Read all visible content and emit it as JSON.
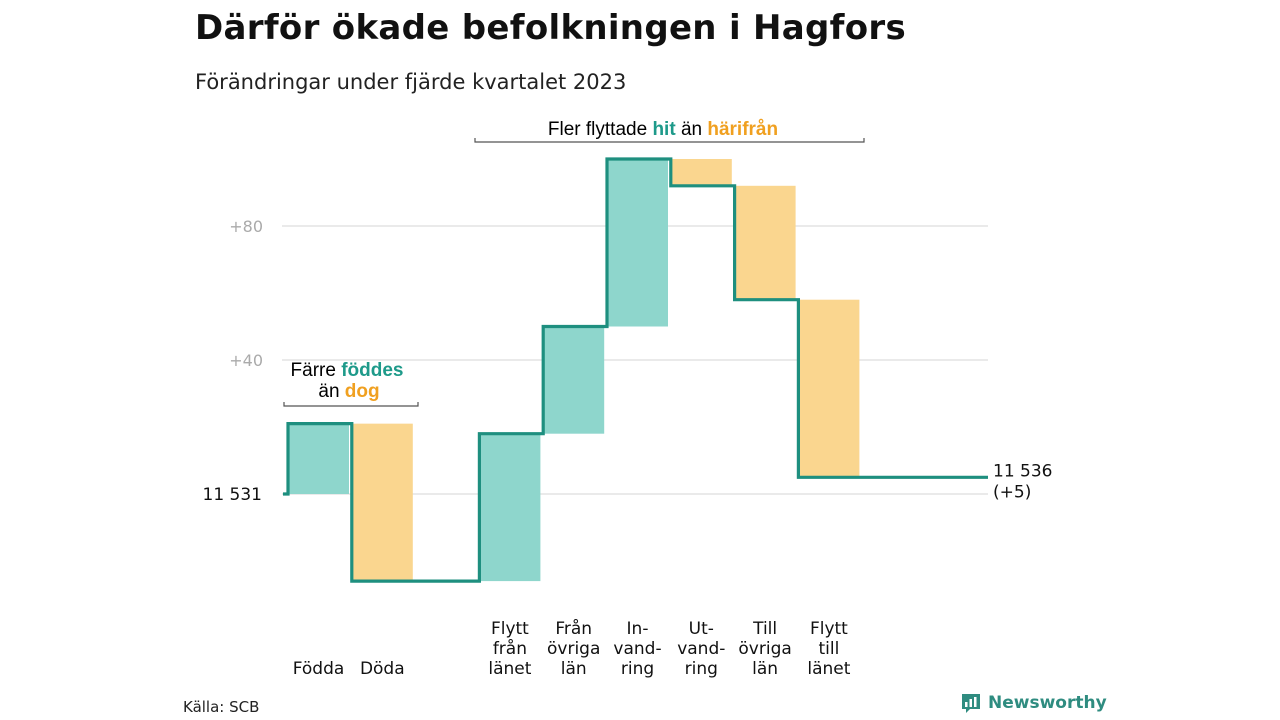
{
  "title": "Därför ökade befolkningen i Hagfors",
  "subtitle": "Förändringar under fjärde kvartalet 2023",
  "source": "Källa: SCB",
  "brand": "Newsworthy",
  "colors": {
    "increase": "#8ed6cc",
    "decrease": "#fad68f",
    "line": "#1e8f7f",
    "teal_text": "#1e9a8a",
    "orange_text": "#f0a020",
    "grid": "#dddddd",
    "tick": "#aaaaaa"
  },
  "annotations": {
    "births_deaths": {
      "line1_prefix": "Färre",
      "line1_highlight": "föddes",
      "line2_prefix": "än",
      "line2_highlight": "dog"
    },
    "migration": {
      "prefix": "Fler flyttade",
      "highlight1": "hit",
      "middle": "än",
      "highlight2": "härifrån"
    }
  },
  "chart_data": {
    "type": "waterfall",
    "title": "Därför ökade befolkningen i Hagfors",
    "subtitle": "Förändringar under fjärde kvartalet 2023",
    "start_value": 11531,
    "start_label": "11  531",
    "end_value": 11536,
    "end_label_line1": "11 536",
    "end_label_line2": "(+5)",
    "yticks": [
      {
        "value": 80,
        "label": "+80"
      },
      {
        "value": 40,
        "label": "+40"
      }
    ],
    "ylim": [
      -26,
      100
    ],
    "grid": true,
    "steps": [
      {
        "category": [
          "Födda"
        ],
        "delta": 21,
        "kind": "increase"
      },
      {
        "category": [
          "Döda"
        ],
        "delta": -47,
        "kind": "decrease"
      },
      {
        "category": [
          "Flytt",
          "från",
          "länet"
        ],
        "delta": 44,
        "kind": "increase"
      },
      {
        "category": [
          "Från",
          "övriga",
          "län"
        ],
        "delta": 32,
        "kind": "increase"
      },
      {
        "category": [
          "In-",
          "vand-",
          "ring"
        ],
        "delta": 50,
        "kind": "increase"
      },
      {
        "category": [
          "Ut-",
          "vand-",
          "ring"
        ],
        "delta": -8,
        "kind": "decrease"
      },
      {
        "category": [
          "Till",
          "övriga",
          "län"
        ],
        "delta": -34,
        "kind": "decrease"
      },
      {
        "category": [
          "Flytt",
          "till",
          "länet"
        ],
        "delta": -53,
        "kind": "decrease"
      }
    ],
    "gap_after_index": 1
  }
}
